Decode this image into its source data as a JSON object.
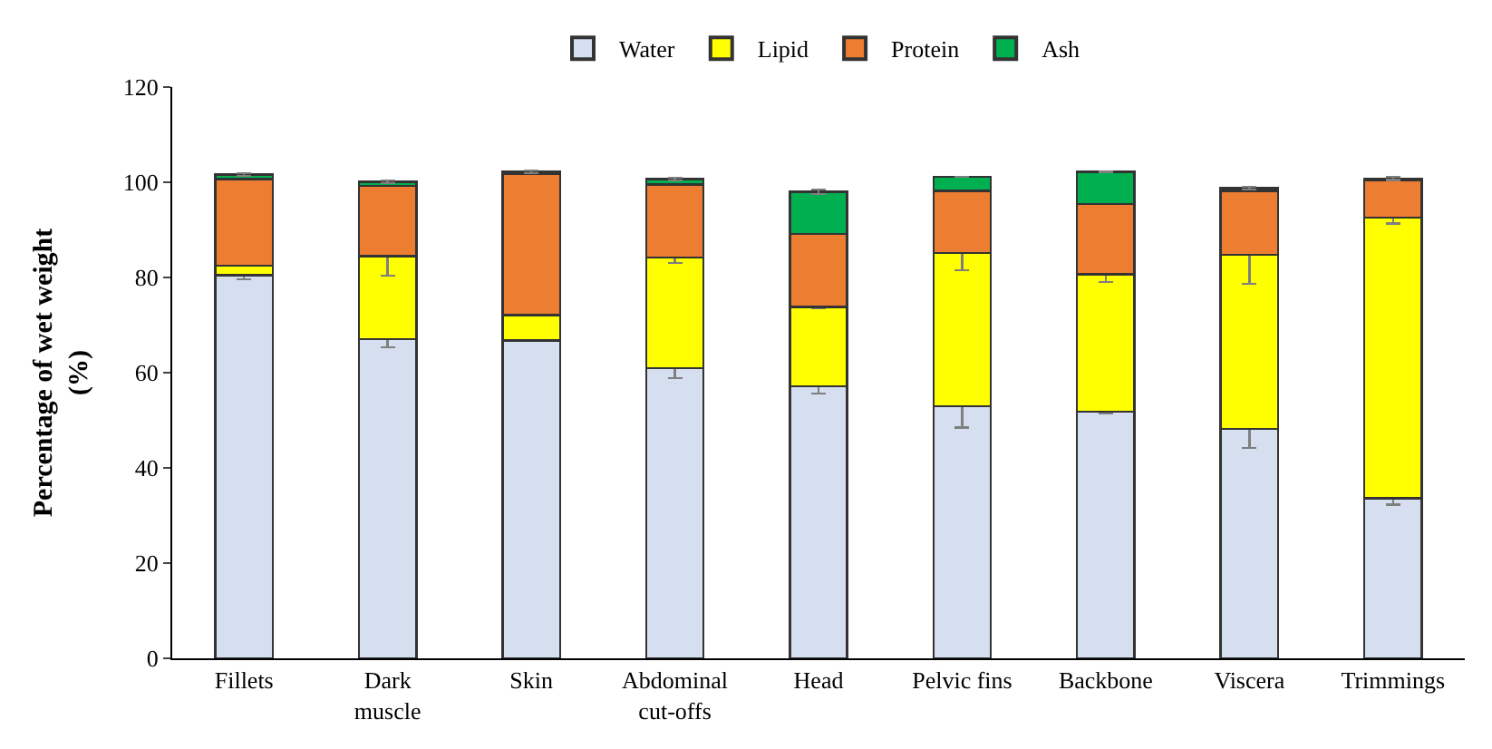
{
  "chart_data": {
    "type": "bar",
    "stacked": true,
    "ylabel": "Percentage of wet weight\n(%)",
    "categories": [
      "Fillets",
      "Dark\nmuscle",
      "Skin",
      "Abdominal\ncut-offs",
      "Head",
      "Pelvic fins",
      "Backbone",
      "Viscera",
      "Trimmings"
    ],
    "series": [
      {
        "name": "Water",
        "color": "#d6dff0",
        "values": [
          80.5,
          67.0,
          66.8,
          60.9,
          57.1,
          52.9,
          51.8,
          48.2,
          33.6
        ],
        "errors": [
          0.9,
          1.7,
          null,
          2.0,
          1.5,
          4.4,
          0.3,
          4.0,
          1.3
        ]
      },
      {
        "name": "Lipid",
        "color": "#ffff00",
        "values": [
          2.0,
          17.5,
          5.3,
          23.3,
          16.7,
          32.3,
          28.9,
          36.6,
          59.0
        ],
        "errors": [
          null,
          4.1,
          null,
          1.2,
          0.3,
          3.7,
          1.7,
          6.1,
          1.3
        ]
      },
      {
        "name": "Protein",
        "color": "#ed7d31",
        "values": [
          18.2,
          14.7,
          29.6,
          15.3,
          15.4,
          13.0,
          14.7,
          13.4,
          7.8
        ]
      },
      {
        "name": "Ash",
        "color": "#00b050",
        "values": [
          0.9,
          0.9,
          0.5,
          1.2,
          8.8,
          2.9,
          6.8,
          0.6,
          0.4
        ],
        "errors": [
          0.3,
          0.3,
          0.3,
          0.3,
          0.5,
          null,
          null,
          0.3,
          0.3
        ]
      }
    ],
    "ylim": [
      0,
      120
    ],
    "yticks": [
      0,
      20,
      40,
      60,
      80,
      100,
      120
    ],
    "legend": "top"
  }
}
